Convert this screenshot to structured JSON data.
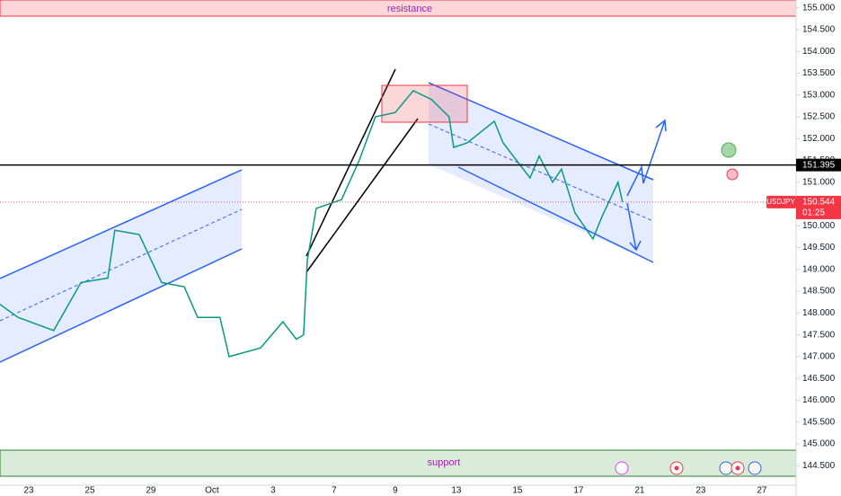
{
  "chart_data": {
    "type": "line",
    "resistance_label": "resistance",
    "support_label": "support",
    "symbol": "USDJPY",
    "last_price": 150.544,
    "countdown": "01:25",
    "hline": 151.395,
    "color": "#089981",
    "x": [
      -0.94,
      -0.35,
      0.82,
      1.71,
      2.59,
      2.82,
      3.62,
      4.35,
      5.09,
      5.53,
      6.26,
      6.56,
      7.59,
      8.32,
      8.76,
      9.0,
      9.12,
      9.41,
      10.24,
      10.82,
      11.35,
      12.0,
      12.59,
      13.18,
      13.76,
      13.91,
      14.35,
      15.24,
      15.53,
      16.41,
      16.71,
      17.15,
      17.44,
      17.88,
      18.47,
      18.76,
      19.29,
      19.44
    ],
    "values": [
      148.2,
      147.9,
      147.6,
      148.7,
      148.8,
      149.9,
      149.8,
      148.7,
      148.6,
      147.9,
      147.9,
      147.0,
      147.2,
      147.8,
      147.4,
      147.5,
      149.2,
      150.4,
      150.6,
      151.5,
      152.5,
      152.6,
      153.1,
      152.9,
      152.5,
      151.8,
      151.9,
      152.4,
      151.9,
      151.1,
      151.6,
      151.0,
      151.3,
      150.3,
      149.7,
      150.2,
      151.0,
      150.544
    ],
    "xlim": [
      -0.94,
      25.12
    ],
    "xticks": [
      {
        "value": 0,
        "label": "23"
      },
      {
        "value": 2,
        "label": "25"
      },
      {
        "value": 4,
        "label": "29"
      },
      {
        "value": 6,
        "label": "Oct"
      },
      {
        "value": 8,
        "label": "3"
      },
      {
        "value": 10,
        "label": "7"
      },
      {
        "value": 12,
        "label": "9"
      },
      {
        "value": 14,
        "label": "13"
      },
      {
        "value": 16,
        "label": "15"
      },
      {
        "value": 18,
        "label": "17"
      },
      {
        "value": 20,
        "label": "21"
      },
      {
        "value": 22,
        "label": "23"
      },
      {
        "value": 24,
        "label": "27"
      }
    ],
    "ylim": [
      144.05,
      155.18
    ],
    "yticks": [
      {
        "value": 144.5,
        "label": "144.500"
      },
      {
        "value": 145,
        "label": "145.000"
      },
      {
        "value": 145.5,
        "label": "145.500"
      },
      {
        "value": 146,
        "label": "146.000"
      },
      {
        "value": 146.5,
        "label": "146.500"
      },
      {
        "value": 147,
        "label": "147.000"
      },
      {
        "value": 147.5,
        "label": "147.500"
      },
      {
        "value": 148,
        "label": "148.000"
      },
      {
        "value": 148.5,
        "label": "148.500"
      },
      {
        "value": 149,
        "label": "149.000"
      },
      {
        "value": 149.5,
        "label": "149.500"
      },
      {
        "value": 150,
        "label": "150.000"
      },
      {
        "value": 150.5,
        "label": "150.500"
      },
      {
        "value": 151,
        "label": "151.000"
      },
      {
        "value": 151.5,
        "label": "151.500"
      },
      {
        "value": 152,
        "label": "152.000"
      },
      {
        "value": 152.5,
        "label": "152.500"
      },
      {
        "value": 153,
        "label": "153.000"
      },
      {
        "value": 153.5,
        "label": "153.500"
      },
      {
        "value": 154,
        "label": "154.000"
      },
      {
        "value": 154.5,
        "label": "154.500"
      },
      {
        "value": 155,
        "label": "155.000"
      }
    ],
    "grid": false
  }
}
